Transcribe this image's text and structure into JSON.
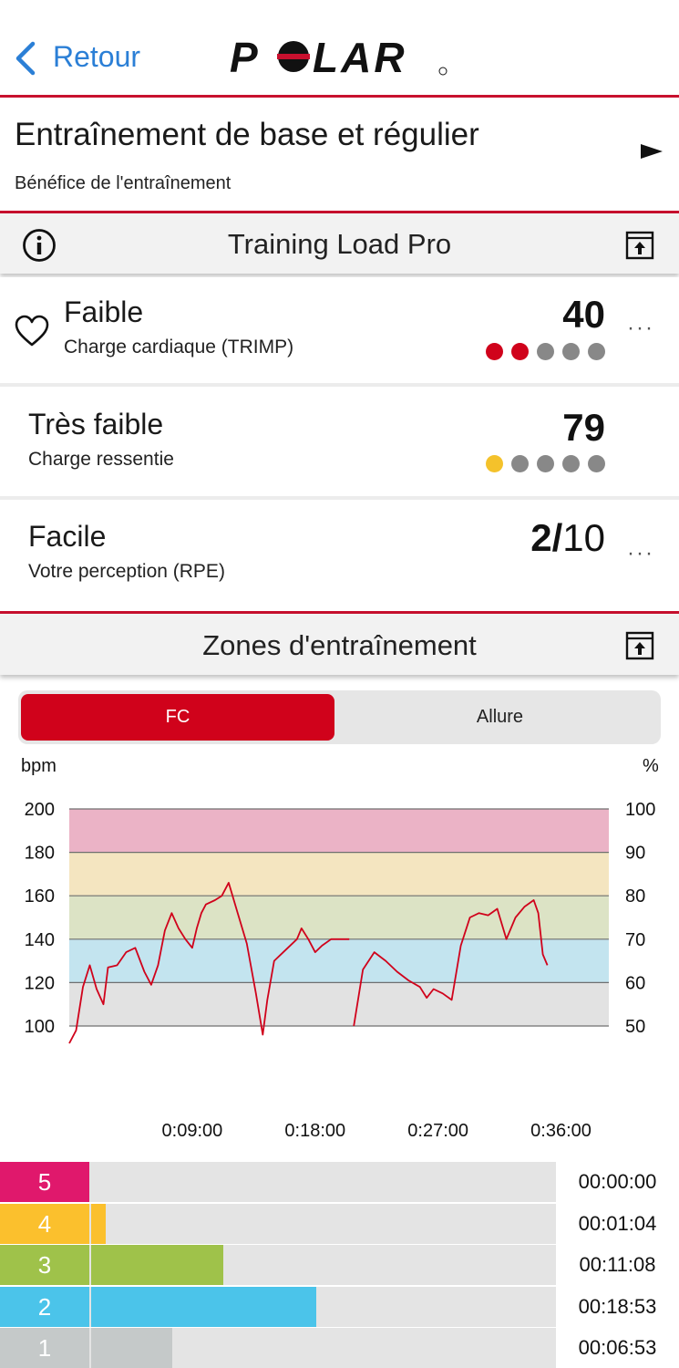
{
  "nav": {
    "back_label": "Retour",
    "logo_text": "POLAR"
  },
  "benefit": {
    "title": "Entraînement de base et régulier",
    "subtitle": "Bénéfice de l'entraînement"
  },
  "training_load": {
    "header": "Training Load Pro",
    "rows": [
      {
        "title": "Faible",
        "subtitle": "Charge cardiaque (TRIMP)",
        "value": "40",
        "dots_filled": 2,
        "dot_color": "#d0021b",
        "has_more": true,
        "icon": "heart-icon"
      },
      {
        "title": "Très faible",
        "subtitle": "Charge ressentie",
        "value": "79",
        "dots_filled": 1,
        "dot_color": "#f4c22b",
        "has_more": false
      },
      {
        "title": "Facile",
        "subtitle": "Votre perception (RPE)",
        "value_main": "2/",
        "value_suffix": "10",
        "has_more": true
      }
    ]
  },
  "zones": {
    "header": "Zones d'entraînement",
    "tabs": {
      "active": "FC",
      "other": "Allure"
    },
    "legend_colors": {
      "zone5": "#e0186c",
      "zone4": "#fbc02d",
      "zone3": "#9fc24a",
      "zone2": "#4bc4ea",
      "zone1": "#c5c9c9"
    }
  },
  "chart_data": {
    "type": "line",
    "ylabel_left": "bpm",
    "ylabel_right": "%",
    "y_ticks_left": [
      "200",
      "180",
      "160",
      "140",
      "120",
      "100"
    ],
    "y_ticks_right": [
      "100",
      "90",
      "80",
      "70",
      "60",
      "50"
    ],
    "x_ticks": [
      "0:09:00",
      "0:18:00",
      "0:27:00",
      "0:36:00"
    ],
    "ylim": [
      100,
      200
    ],
    "xlim_seconds": [
      0,
      2370
    ],
    "zone_bands": [
      {
        "from": 100,
        "to": 120,
        "color": "#e2e2e2"
      },
      {
        "from": 120,
        "to": 140,
        "color": "#c3e4ef"
      },
      {
        "from": 140,
        "to": 160,
        "color": "#dce3c5"
      },
      {
        "from": 160,
        "to": 180,
        "color": "#f4e5c0"
      },
      {
        "from": 180,
        "to": 200,
        "color": "#ebb3c6"
      }
    ],
    "series": [
      {
        "color": "#d0021b",
        "segments": [
          [
            [
              0,
              92
            ],
            [
              30,
              98
            ],
            [
              60,
              118
            ],
            [
              90,
              128
            ],
            [
              120,
              117
            ],
            [
              150,
              110
            ],
            [
              170,
              127
            ],
            [
              210,
              128
            ],
            [
              250,
              134
            ],
            [
              290,
              136
            ],
            [
              330,
              125
            ],
            [
              360,
              119
            ],
            [
              390,
              128
            ],
            [
              420,
              144
            ],
            [
              450,
              152
            ],
            [
              480,
              145
            ],
            [
              510,
              140
            ],
            [
              540,
              136
            ],
            [
              560,
              145
            ],
            [
              580,
              152
            ],
            [
              600,
              156
            ],
            [
              640,
              158
            ],
            [
              670,
              160
            ],
            [
              700,
              166
            ],
            [
              740,
              152
            ],
            [
              780,
              138
            ],
            [
              820,
              115
            ],
            [
              850,
              96
            ],
            [
              870,
              112
            ],
            [
              900,
              130
            ],
            [
              950,
              135
            ],
            [
              1000,
              140
            ],
            [
              1020,
              145
            ],
            [
              1050,
              140
            ],
            [
              1080,
              134
            ],
            [
              1110,
              137
            ],
            [
              1150,
              140
            ],
            [
              1190,
              140
            ],
            [
              1230,
              140
            ]
          ],
          [
            [
              1250,
              100
            ],
            [
              1290,
              126
            ],
            [
              1340,
              134
            ],
            [
              1390,
              130
            ],
            [
              1440,
              125
            ],
            [
              1490,
              121
            ],
            [
              1540,
              118
            ],
            [
              1570,
              113
            ],
            [
              1600,
              117
            ],
            [
              1640,
              115
            ],
            [
              1680,
              112
            ],
            [
              1720,
              137
            ],
            [
              1760,
              150
            ],
            [
              1800,
              152
            ],
            [
              1840,
              151
            ],
            [
              1880,
              154
            ],
            [
              1920,
              140
            ],
            [
              1960,
              150
            ],
            [
              2000,
              155
            ],
            [
              2040,
              158
            ],
            [
              2060,
              152
            ],
            [
              2080,
              133
            ],
            [
              2100,
              128
            ]
          ]
        ]
      }
    ]
  },
  "zone_times": [
    {
      "zone": "5",
      "time": "00:00:00",
      "fraction": 0.0
    },
    {
      "zone": "4",
      "time": "00:01:04",
      "fraction": 0.032
    },
    {
      "zone": "3",
      "time": "00:11:08",
      "fraction": 0.286
    },
    {
      "zone": "2",
      "time": "00:18:53",
      "fraction": 0.486
    },
    {
      "zone": "1",
      "time": "00:06:53",
      "fraction": 0.176
    }
  ]
}
